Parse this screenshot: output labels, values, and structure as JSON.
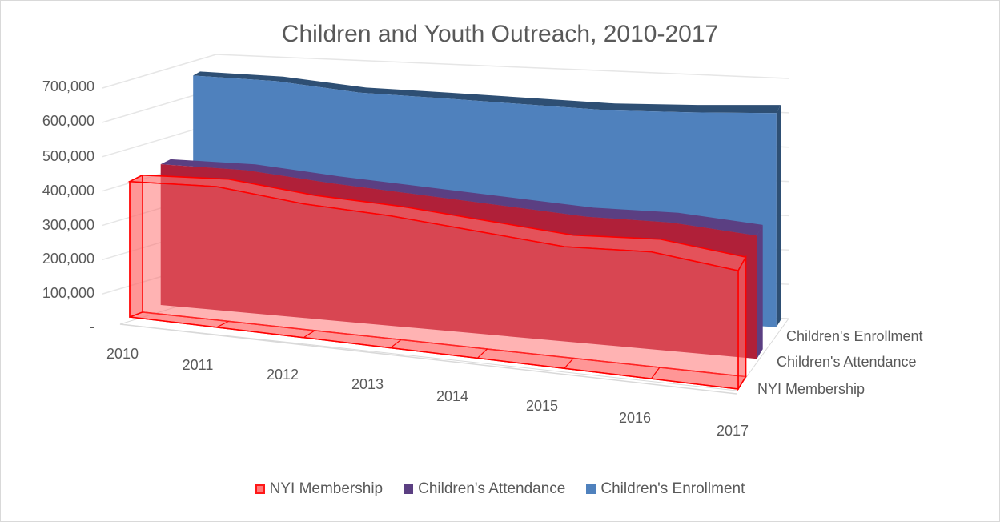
{
  "chart_data": {
    "type": "area",
    "view": "3d",
    "title": "Children and Youth Outreach, 2010-2017",
    "categories": [
      "2010",
      "2011",
      "2012",
      "2013",
      "2014",
      "2015",
      "2016",
      "2017"
    ],
    "y_ticks": [
      "700,000",
      "600,000",
      "500,000",
      "400,000",
      "300,000",
      "200,000",
      "100,000",
      "-"
    ],
    "ylim": [
      0,
      700000
    ],
    "grid": true,
    "legend_position": "bottom",
    "series": [
      {
        "name": "NYI Membership",
        "values": [
          395000,
          410000,
          390000,
          385000,
          370000,
          355000,
          370000,
          345000
        ],
        "color": "#ff6b6b",
        "outline": "#ff0000",
        "fill_opacity": 0.55
      },
      {
        "name": "Children's Attendance",
        "values": [
          400000,
          405000,
          390000,
          380000,
          370000,
          360000,
          365000,
          350000
        ],
        "color": "#b02039",
        "side_color": "#5b3f82"
      },
      {
        "name": "Children's Enrollment",
        "values": [
          600000,
          598000,
          580000,
          578000,
          575000,
          572000,
          580000,
          592000
        ],
        "color": "#4f81bd",
        "side_color": "#2e4f74"
      }
    ]
  }
}
